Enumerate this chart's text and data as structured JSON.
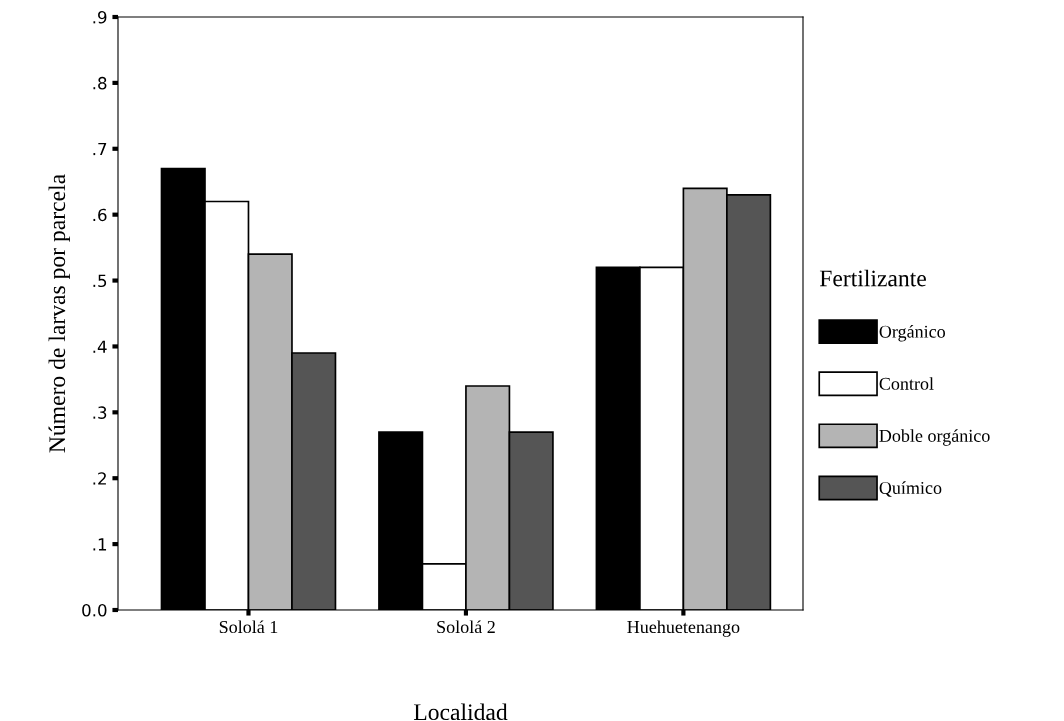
{
  "chart_data": {
    "type": "bar",
    "xlabel": "Localidad",
    "ylabel": "Número de larvas por parcela",
    "legend_title": "Fertilizante",
    "categories": [
      "Sololá 1",
      "Sololá 2",
      "Huehuetenango"
    ],
    "series": [
      {
        "name": "Orgánico",
        "color": "#000000",
        "values": [
          0.67,
          0.27,
          0.52
        ]
      },
      {
        "name": "Control",
        "color": "#ffffff",
        "values": [
          0.62,
          0.07,
          0.52
        ]
      },
      {
        "name": "Doble orgánico",
        "color": "#b4b4b4",
        "values": [
          0.54,
          0.34,
          0.64
        ]
      },
      {
        "name": "Químico",
        "color": "#555555",
        "values": [
          0.39,
          0.27,
          0.63
        ]
      }
    ],
    "ylim": [
      0,
      0.9
    ],
    "yticks": [
      {
        "value": 0,
        "label": "0.0"
      },
      {
        "value": 0.1,
        "label": ".1"
      },
      {
        "value": 0.2,
        "label": ".2"
      },
      {
        "value": 0.3,
        "label": ".3"
      },
      {
        "value": 0.4,
        "label": ".4"
      },
      {
        "value": 0.5,
        "label": ".5"
      },
      {
        "value": 0.6,
        "label": ".6"
      },
      {
        "value": 0.7,
        "label": ".7"
      },
      {
        "value": 0.8,
        "label": ".8"
      },
      {
        "value": 0.9,
        "label": ".9"
      }
    ],
    "grid": false,
    "legend": "right"
  }
}
